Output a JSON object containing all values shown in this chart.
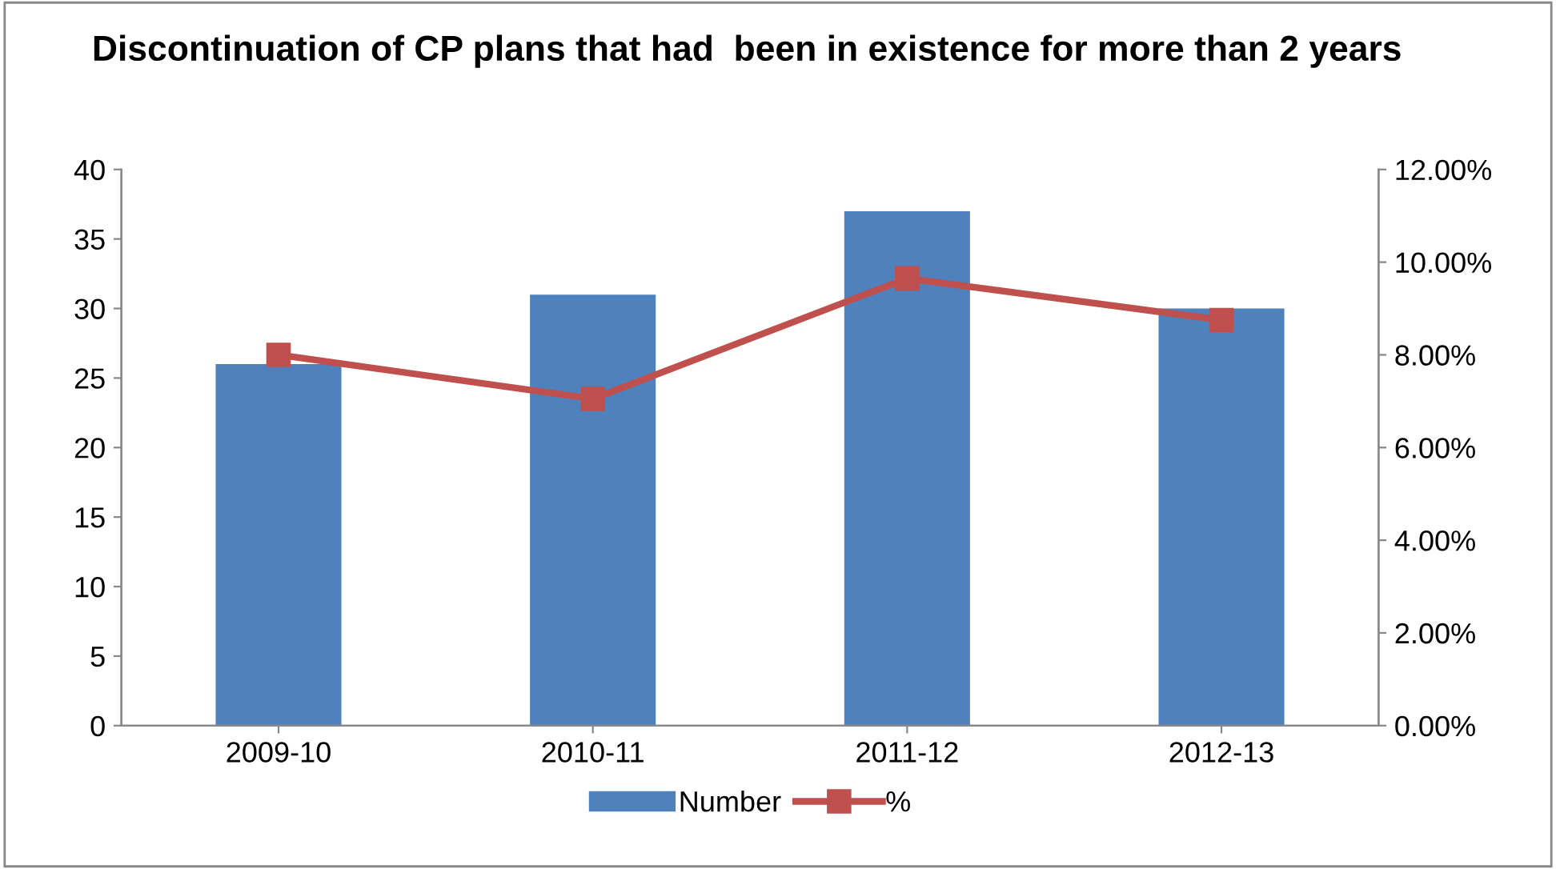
{
  "chart_data": {
    "type": "bar",
    "title": "Discontinuation of CP plans that had  been in existence for more than 2 years",
    "categories": [
      "2009-10",
      "2010-11",
      "2011-12",
      "2012-13"
    ],
    "series": [
      {
        "name": "Number",
        "color": "#4f81bd",
        "values": [
          26,
          31,
          37,
          30
        ]
      },
      {
        "name": "%",
        "type": "line",
        "axis": "y2",
        "color": "#c0504d",
        "marker": "square",
        "values": [
          8.0,
          7.05,
          9.65,
          8.75
        ]
      }
    ],
    "ylim": [
      0,
      40
    ],
    "yticks": [
      0,
      5,
      10,
      15,
      20,
      25,
      30,
      35,
      40
    ],
    "y2lim": [
      0,
      12
    ],
    "y2ticks": [
      {
        "value": 0,
        "label": "0.00%"
      },
      {
        "value": 2,
        "label": "2.00%"
      },
      {
        "value": 4,
        "label": "4.00%"
      },
      {
        "value": 6,
        "label": "6.00%"
      },
      {
        "value": 8,
        "label": "8.00%"
      },
      {
        "value": 10,
        "label": "10.00%"
      },
      {
        "value": 12,
        "label": "12.00%"
      }
    ],
    "legend": "bottom",
    "grid": false
  }
}
